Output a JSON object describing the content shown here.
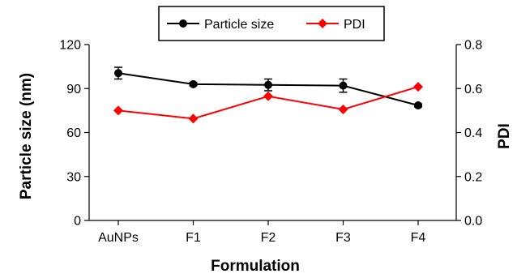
{
  "chart_data": {
    "type": "line",
    "xlabel": "Formulation",
    "ylabel_left": "Particle size (nm)",
    "ylabel_right": "PDI",
    "categories": [
      "AuNPs",
      "F1",
      "F2",
      "F3",
      "F4"
    ],
    "ylim_left": [
      0,
      120
    ],
    "yticks_left": [
      "0",
      "30",
      "60",
      "90",
      "120"
    ],
    "ylim_right": [
      0,
      0.8
    ],
    "yticks_right": [
      "0.0",
      "0.2",
      "0.4",
      "0.6",
      "0.8"
    ],
    "grid": false,
    "legend_position": "top-center",
    "series": [
      {
        "name": "Particle size",
        "axis": "left",
        "color": "#000000",
        "marker": "circle",
        "values": [
          100.5,
          93,
          92.5,
          92,
          78.5
        ],
        "errors": [
          4,
          1,
          4,
          4.5,
          1
        ]
      },
      {
        "name": "PDI",
        "axis": "right",
        "color": "#ff0000",
        "marker": "diamond",
        "values": [
          0.5,
          0.463,
          0.565,
          0.505,
          0.608
        ]
      }
    ]
  }
}
